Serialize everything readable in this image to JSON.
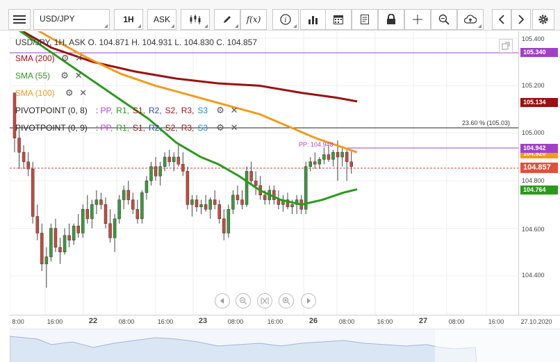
{
  "toolbar": {
    "symbol": "USD/JPY",
    "timeframe": "1H",
    "price_type": "ASK",
    "fx_label": "f(x)"
  },
  "chart_info": {
    "ohlc": "USD/JPY, 1H, ASK    O. 104.871 H. 104.931 L. 104.830 C. 104.857"
  },
  "indicators": [
    {
      "label": "SMA (200)",
      "color": "#9b1010"
    },
    {
      "label": "SMA (55)",
      "color": "#2a9a1a"
    },
    {
      "label": "SMA (100)",
      "color": "#f39a1a"
    }
  ],
  "pivots": [
    {
      "label": "PIVOTPOINT (0, 8)"
    },
    {
      "label": "PIVOTPOINT (0, 9)"
    }
  ],
  "pivot_levels": [
    "PP,",
    "R1,",
    "S1,",
    "R2,",
    "S2,",
    "R3,",
    "S3"
  ],
  "pivot_colors": [
    "#b040c8",
    "#2a9a1a",
    "#9b1010",
    "#2a4ab0",
    "#9b1010",
    "#9b1010",
    "#1a8ac8"
  ],
  "price_axis": {
    "ticks": [
      "105.400",
      "105.200",
      "105.000",
      "104.800",
      "104.600",
      "104.400"
    ],
    "tags": {
      "purple": "105.340",
      "sma200": "105.134",
      "pp": "104.942",
      "sma100": "104.920",
      "current": "104.857",
      "sma55": "104.764"
    }
  },
  "annotations": {
    "fib": "23.60 % (105.03)",
    "pp": "PP: 104.948"
  },
  "time_axis": [
    {
      "label": "8:00"
    },
    {
      "label": "16:00"
    },
    {
      "label": "22",
      "bold": true
    },
    {
      "label": "08:00"
    },
    {
      "label": "16:00"
    },
    {
      "label": "23",
      "bold": true
    },
    {
      "label": "08:00"
    },
    {
      "label": "16:00"
    },
    {
      "label": "26",
      "bold": true
    },
    {
      "label": "08:00"
    },
    {
      "label": "16:00"
    },
    {
      "label": "27",
      "bold": true
    },
    {
      "label": "08:00"
    },
    {
      "label": "16:00"
    },
    {
      "label": "27.10.2020"
    }
  ]
}
